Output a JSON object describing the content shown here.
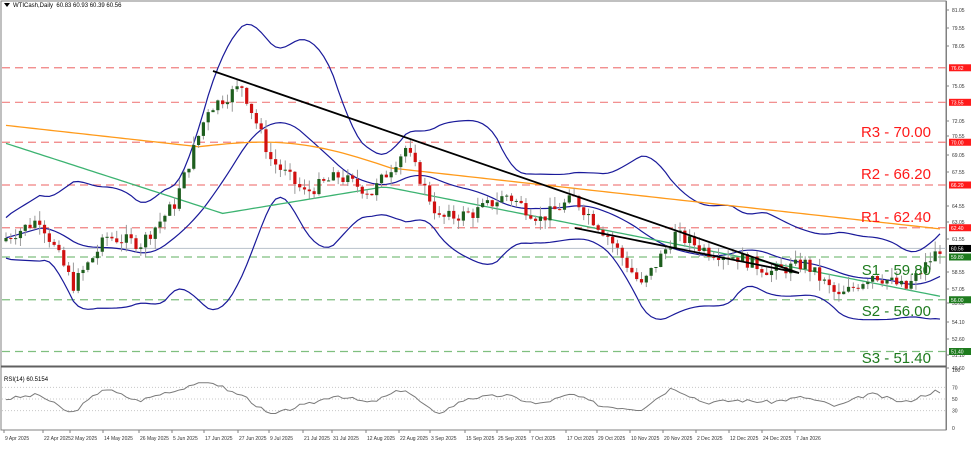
{
  "header": {
    "symbol": "WTICash,Daily",
    "ohlc": "60.83 60.93 60.39 60.56"
  },
  "rsi_panel": {
    "title": "RSI(14) 60.5154",
    "levels": [
      "100",
      "70",
      "50",
      "30",
      "0"
    ]
  },
  "levels": {
    "R3": {
      "label": "R3 - 70.00",
      "price": 70.0,
      "color": "#ff1a1a"
    },
    "R2": {
      "label": "R2 - 66.20",
      "price": 66.2,
      "color": "#ff1a1a"
    },
    "R1": {
      "label": "R1 - 62.40",
      "price": 62.4,
      "color": "#ff1a1a"
    },
    "S1": {
      "label": "S1 - 59.80",
      "price": 59.8,
      "color": "#1e7b1e"
    },
    "S2": {
      "label": "S2 - 56.00",
      "price": 56.0,
      "color": "#1e7b1e"
    },
    "S3": {
      "label": "S3 - 51.40",
      "price": 51.4,
      "color": "#1e7b1e"
    }
  },
  "price_axis": {
    "ticks": [
      "81.05",
      "79.55",
      "78.05",
      "75.05",
      "72.05",
      "70.55",
      "69.05",
      "67.55",
      "64.55",
      "63.05",
      "61.55",
      "58.55",
      "57.05",
      "55.60",
      "54.10",
      "52.60",
      "51.10",
      "49.60"
    ],
    "badges": [
      {
        "text": "76.62",
        "price": 76.62,
        "color": "#ff1a1a"
      },
      {
        "text": "73.55",
        "price": 73.55,
        "color": "#ff1a1a"
      },
      {
        "text": "70.00",
        "price": 70.0,
        "color": "#ff1a1a"
      },
      {
        "text": "66.20",
        "price": 66.2,
        "color": "#ff1a1a"
      },
      {
        "text": "62.40",
        "price": 62.4,
        "color": "#ff1a1a"
      },
      {
        "text": "60.56",
        "price": 60.56,
        "color": "#000000"
      },
      {
        "text": "59.80",
        "price": 59.8,
        "color": "#1e7b1e"
      },
      {
        "text": "56.00",
        "price": 56.0,
        "color": "#1e7b1e"
      },
      {
        "text": "51.40",
        "price": 51.4,
        "color": "#1e7b1e"
      }
    ]
  },
  "date_axis": [
    "9 Apr 2025",
    "22 Apr 2025",
    "2 May 2025",
    "14 May 2025",
    "26 May 2025",
    "5 Jun 2025",
    "17 Jun 2025",
    "27 Jun 2025",
    "9 Jul 2025",
    "21 Jul 2025",
    "31 Jul 2025",
    "12 Aug 2025",
    "22 Aug 2025",
    "3 Sep 2025",
    "15 Sep 2025",
    "25 Sep 2025",
    "7 Oct 2025",
    "17 Oct 2025",
    "29 Oct 2025",
    "10 Nov 2025",
    "20 Nov 2025",
    "2 Dec 2025",
    "12 Dec 2025",
    "24 Dec 2025",
    "7 Jan 2026"
  ],
  "colors": {
    "bull": "#1e5e1e",
    "bear": "#d01010",
    "wick": "#9a9a9a",
    "ma_orange": "#ff9a1a",
    "ma_green": "#3cb371",
    "bollinger": "#1a1a9a",
    "trendline": "#000000",
    "rsi": "#7a7a7a",
    "res_line": "#f08080",
    "sup_line": "#7fbf7f"
  },
  "chart_data": {
    "type": "candlestick",
    "title": "WTICash, Daily",
    "symbol": "WTICash",
    "timeframe": "Daily",
    "last_ohlc": {
      "open": 60.83,
      "high": 60.93,
      "low": 60.39,
      "close": 60.56
    },
    "ylim": [
      49.6,
      82.0
    ],
    "horizontal_levels": [
      {
        "name": "R3",
        "value": 70.0
      },
      {
        "name": "R2",
        "value": 66.2
      },
      {
        "name": "R1",
        "value": 62.4
      },
      {
        "name": "S1",
        "value": 59.8
      },
      {
        "name": "S2",
        "value": 56.0
      },
      {
        "name": "S3",
        "value": 51.4
      }
    ],
    "other_levels": [
      76.62,
      73.55
    ],
    "current_price": 60.56,
    "trendline": {
      "start": {
        "date": "20 Jun 2025",
        "price": 76.6
      },
      "end": {
        "date": "8 Jan 2026",
        "price": 58.0
      }
    },
    "indicators": [
      "Bollinger Bands",
      "MA (orange, long)",
      "MA (green, medium)",
      "RSI(14)"
    ],
    "rsi": {
      "period": 14,
      "last": 60.5154,
      "levels": [
        70,
        50,
        30
      ]
    },
    "closes_approx": [
      {
        "date": "9 Apr 2025",
        "close": 61.5
      },
      {
        "date": "22 Apr 2025",
        "close": 63.2
      },
      {
        "date": "2 May 2025",
        "close": 57.3
      },
      {
        "date": "14 May 2025",
        "close": 61.6
      },
      {
        "date": "26 May 2025",
        "close": 61.0
      },
      {
        "date": "5 Jun 2025",
        "close": 64.5
      },
      {
        "date": "13 Jun 2025",
        "close": 73.0
      },
      {
        "date": "20 Jun 2025",
        "close": 75.0
      },
      {
        "date": "23 Jun 2025",
        "close": 68.5
      },
      {
        "date": "27 Jun 2025",
        "close": 65.5
      },
      {
        "date": "9 Jul 2025",
        "close": 67.0
      },
      {
        "date": "21 Jul 2025",
        "close": 65.5
      },
      {
        "date": "31 Jul 2025",
        "close": 69.5
      },
      {
        "date": "12 Aug 2025",
        "close": 63.2
      },
      {
        "date": "22 Aug 2025",
        "close": 63.7
      },
      {
        "date": "3 Sep 2025",
        "close": 65.3
      },
      {
        "date": "15 Sep 2025",
        "close": 63.2
      },
      {
        "date": "25 Sep 2025",
        "close": 65.0
      },
      {
        "date": "7 Oct 2025",
        "close": 61.7
      },
      {
        "date": "17 Oct 2025",
        "close": 57.2
      },
      {
        "date": "21 Oct 2025",
        "close": 61.8
      },
      {
        "date": "29 Oct 2025",
        "close": 60.3
      },
      {
        "date": "10 Nov 2025",
        "close": 59.8
      },
      {
        "date": "20 Nov 2025",
        "close": 58.5
      },
      {
        "date": "2 Dec 2025",
        "close": 59.2
      },
      {
        "date": "12 Dec 2025",
        "close": 56.2
      },
      {
        "date": "24 Dec 2025",
        "close": 58.3
      },
      {
        "date": "7 Jan 2026",
        "close": 57.0
      },
      {
        "date": "12 Jan 2026",
        "close": 60.56
      }
    ]
  }
}
